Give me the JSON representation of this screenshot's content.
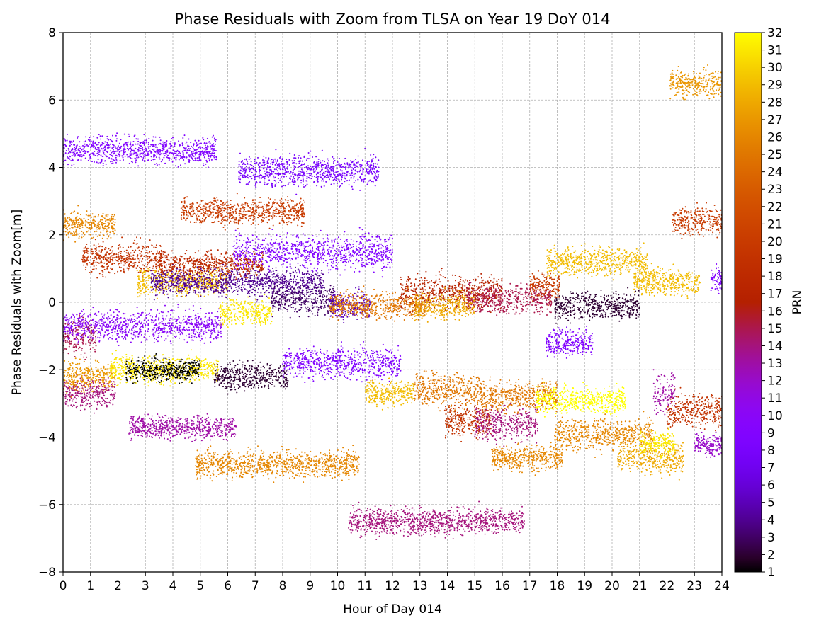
{
  "chart_data": {
    "type": "scatter",
    "title": "Phase Residuals with Zoom from TLSA on Year 19 DoY 014",
    "xlabel": "Hour of Day 014",
    "ylabel": "Phase Residuals with Zoom[m]",
    "xlim": [
      0,
      24
    ],
    "ylim": [
      -8,
      8
    ],
    "xticks": [
      "0",
      "1",
      "2",
      "3",
      "4",
      "5",
      "6",
      "7",
      "8",
      "9",
      "10",
      "11",
      "12",
      "13",
      "14",
      "15",
      "16",
      "17",
      "18",
      "19",
      "20",
      "21",
      "22",
      "23",
      "24"
    ],
    "yticks": [
      "−8",
      "−6",
      "−4",
      "−2",
      "0",
      "2",
      "4",
      "6",
      "8"
    ],
    "grid": true,
    "colorbar": {
      "label": "PRN",
      "colormap": "gnuplot",
      "min": 1,
      "max": 32,
      "ticks": [
        "1",
        "2",
        "3",
        "4",
        "5",
        "6",
        "7",
        "8",
        "9",
        "10",
        "11",
        "12",
        "13",
        "14",
        "15",
        "16",
        "17",
        "18",
        "19",
        "20",
        "21",
        "22",
        "23",
        "24",
        "25",
        "26",
        "27",
        "28",
        "29",
        "30",
        "31",
        "32"
      ]
    },
    "point_clusters": [
      {
        "prn": 9,
        "x_start": 0.0,
        "x_end": 5.6,
        "y_center": 4.5,
        "y_spread": 0.35
      },
      {
        "prn": 26,
        "x_start": 0.0,
        "x_end": 1.9,
        "y_center": 2.3,
        "y_spread": 0.35
      },
      {
        "prn": 19,
        "x_start": 0.7,
        "x_end": 3.6,
        "y_center": 1.3,
        "y_spread": 0.4
      },
      {
        "prn": 15,
        "x_start": 0.0,
        "x_end": 1.2,
        "y_center": -1.0,
        "y_spread": 0.5
      },
      {
        "prn": 10,
        "x_start": 0.0,
        "x_end": 5.8,
        "y_center": -0.7,
        "y_spread": 0.4
      },
      {
        "prn": 14,
        "x_start": 0.0,
        "x_end": 1.9,
        "y_center": -2.7,
        "y_spread": 0.4
      },
      {
        "prn": 27,
        "x_start": 0.0,
        "x_end": 1.9,
        "y_center": -2.2,
        "y_spread": 0.4
      },
      {
        "prn": 31,
        "x_start": 1.7,
        "x_end": 5.7,
        "y_center": -2.0,
        "y_spread": 0.35
      },
      {
        "prn": 1,
        "x_start": 2.3,
        "x_end": 5.0,
        "y_center": -2.0,
        "y_spread": 0.3
      },
      {
        "prn": 29,
        "x_start": 2.7,
        "x_end": 6.0,
        "y_center": 0.6,
        "y_spread": 0.35
      },
      {
        "prn": 13,
        "x_start": 2.4,
        "x_end": 6.3,
        "y_center": -3.7,
        "y_spread": 0.3
      },
      {
        "prn": 20,
        "x_start": 4.3,
        "x_end": 8.8,
        "y_center": 2.7,
        "y_spread": 0.35
      },
      {
        "prn": 18,
        "x_start": 3.5,
        "x_end": 7.3,
        "y_center": 1.1,
        "y_spread": 0.35
      },
      {
        "prn": 4,
        "x_start": 3.2,
        "x_end": 9.5,
        "y_center": 0.6,
        "y_spread": 0.35
      },
      {
        "prn": 31,
        "x_start": 5.7,
        "x_end": 7.6,
        "y_center": -0.3,
        "y_spread": 0.35
      },
      {
        "prn": 2,
        "x_start": 5.5,
        "x_end": 8.2,
        "y_center": -2.2,
        "y_spread": 0.35
      },
      {
        "prn": 26,
        "x_start": 4.8,
        "x_end": 10.8,
        "y_center": -4.8,
        "y_spread": 0.35
      },
      {
        "prn": 8,
        "x_start": 6.4,
        "x_end": 11.5,
        "y_center": 3.9,
        "y_spread": 0.4
      },
      {
        "prn": 9,
        "x_start": 6.2,
        "x_end": 12.0,
        "y_center": 1.5,
        "y_spread": 0.45
      },
      {
        "prn": 3,
        "x_start": 7.6,
        "x_end": 9.9,
        "y_center": 0.1,
        "y_spread": 0.4
      },
      {
        "prn": 9,
        "x_start": 8.0,
        "x_end": 12.3,
        "y_center": -1.8,
        "y_spread": 0.4
      },
      {
        "prn": 5,
        "x_start": 9.7,
        "x_end": 11.2,
        "y_center": -0.1,
        "y_spread": 0.35
      },
      {
        "prn": 25,
        "x_start": 9.7,
        "x_end": 13.2,
        "y_center": -0.1,
        "y_spread": 0.35
      },
      {
        "prn": 14,
        "x_start": 10.4,
        "x_end": 16.8,
        "y_center": -6.5,
        "y_spread": 0.35
      },
      {
        "prn": 29,
        "x_start": 11.0,
        "x_end": 12.8,
        "y_center": -2.7,
        "y_spread": 0.35
      },
      {
        "prn": 17,
        "x_start": 12.3,
        "x_end": 16.0,
        "y_center": 0.3,
        "y_spread": 0.45
      },
      {
        "prn": 28,
        "x_start": 12.8,
        "x_end": 15.0,
        "y_center": -0.1,
        "y_spread": 0.35
      },
      {
        "prn": 25,
        "x_start": 12.8,
        "x_end": 15.2,
        "y_center": -2.6,
        "y_spread": 0.45
      },
      {
        "prn": 19,
        "x_start": 13.9,
        "x_end": 15.6,
        "y_center": -3.5,
        "y_spread": 0.4
      },
      {
        "prn": 15,
        "x_start": 14.7,
        "x_end": 17.8,
        "y_center": 0.1,
        "y_spread": 0.4
      },
      {
        "prn": 14,
        "x_start": 15.0,
        "x_end": 17.3,
        "y_center": -3.6,
        "y_spread": 0.45
      },
      {
        "prn": 25,
        "x_start": 15.2,
        "x_end": 18.0,
        "y_center": -2.8,
        "y_spread": 0.4
      },
      {
        "prn": 26,
        "x_start": 15.6,
        "x_end": 18.2,
        "y_center": -4.6,
        "y_spread": 0.35
      },
      {
        "prn": 20,
        "x_start": 17.0,
        "x_end": 18.1,
        "y_center": 0.5,
        "y_spread": 0.35
      },
      {
        "prn": 9,
        "x_start": 17.6,
        "x_end": 19.3,
        "y_center": -1.2,
        "y_spread": 0.35
      },
      {
        "prn": 2,
        "x_start": 17.9,
        "x_end": 21.0,
        "y_center": -0.1,
        "y_spread": 0.35
      },
      {
        "prn": 29,
        "x_start": 17.6,
        "x_end": 21.3,
        "y_center": 1.2,
        "y_spread": 0.35
      },
      {
        "prn": 32,
        "x_start": 17.2,
        "x_end": 20.5,
        "y_center": -2.9,
        "y_spread": 0.35
      },
      {
        "prn": 26,
        "x_start": 17.9,
        "x_end": 21.5,
        "y_center": -3.9,
        "y_spread": 0.4
      },
      {
        "prn": 29,
        "x_start": 20.8,
        "x_end": 23.2,
        "y_center": 0.6,
        "y_spread": 0.35
      },
      {
        "prn": 28,
        "x_start": 20.2,
        "x_end": 22.6,
        "y_center": -4.6,
        "y_spread": 0.4
      },
      {
        "prn": 31,
        "x_start": 21.0,
        "x_end": 22.3,
        "y_center": -4.2,
        "y_spread": 0.3
      },
      {
        "prn": 13,
        "x_start": 21.5,
        "x_end": 22.3,
        "y_center": -2.7,
        "y_spread": 0.5
      },
      {
        "prn": 19,
        "x_start": 22.0,
        "x_end": 24.0,
        "y_center": -3.2,
        "y_spread": 0.45
      },
      {
        "prn": 12,
        "x_start": 23.0,
        "x_end": 24.0,
        "y_center": -4.2,
        "y_spread": 0.3
      },
      {
        "prn": 27,
        "x_start": 22.1,
        "x_end": 24.0,
        "y_center": 6.5,
        "y_spread": 0.35
      },
      {
        "prn": 20,
        "x_start": 22.2,
        "x_end": 24.0,
        "y_center": 2.4,
        "y_spread": 0.35
      },
      {
        "prn": 9,
        "x_start": 23.6,
        "x_end": 24.0,
        "y_center": 0.7,
        "y_spread": 0.35
      }
    ]
  }
}
